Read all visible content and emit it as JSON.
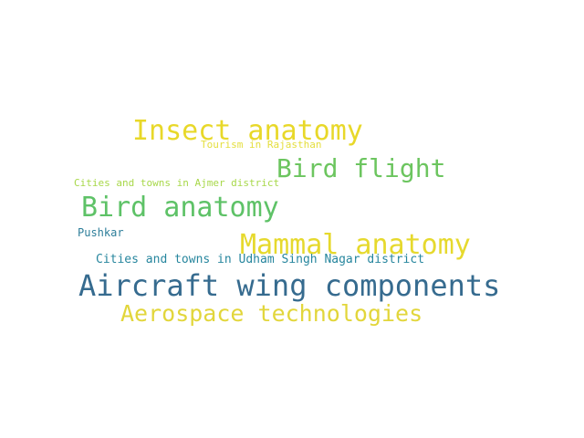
{
  "words": [
    {
      "id": "insect",
      "text": "Insect anatomy",
      "color": "#e8d829"
    },
    {
      "id": "tourism",
      "text": "Tourism in Rajasthan",
      "color": "#e4de3c"
    },
    {
      "id": "flight",
      "text": "Bird flight",
      "color": "#6cc55f"
    },
    {
      "id": "ajmer",
      "text": "Cities and towns in Ajmer district",
      "color": "#a8d84a"
    },
    {
      "id": "birdana",
      "text": "Bird anatomy",
      "color": "#5ec267"
    },
    {
      "id": "pushkar",
      "text": "Pushkar",
      "color": "#2d7e9a"
    },
    {
      "id": "mammal",
      "text": "Mammal anatomy",
      "color": "#e6d92d"
    },
    {
      "id": "udham",
      "text": "Cities and towns in Udham Singh Nagar district",
      "color": "#27869e"
    },
    {
      "id": "aircraft",
      "text": "Aircraft wing components",
      "color": "#366b8f"
    },
    {
      "id": "aero",
      "text": "Aerospace technologies",
      "color": "#e2d63b"
    }
  ]
}
